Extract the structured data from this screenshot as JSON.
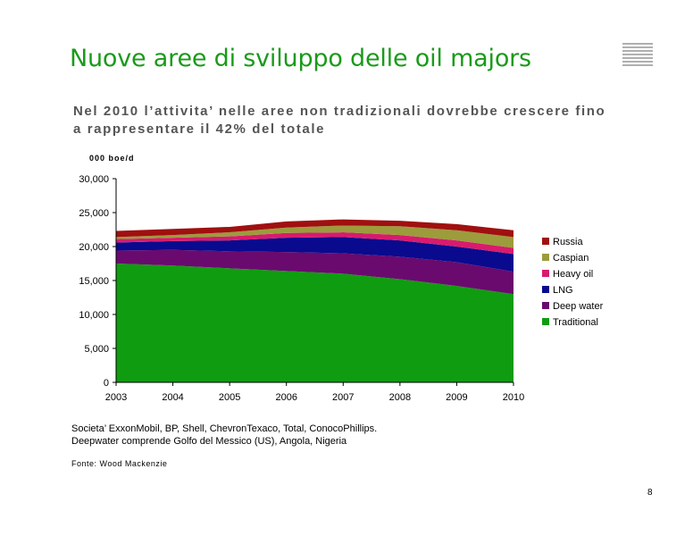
{
  "slide": {
    "title": "Nuove aree di sviluppo delle oil majors",
    "subtitle_line1": "Nel 2010 l’attivita’ nelle aree non tradizionali dovrebbe crescere fino",
    "subtitle_line2": "a rappresentare il 42% del totale",
    "unit": "000 boe/d",
    "note_line1": "Societa’ ExxonMobil, BP, Shell, ChevronTexaco, Total, ConocoPhillips.",
    "note_line2": "Deepwater comprende Golfo del Messico (US), Angola, Nigeria",
    "source": "Fonte: Wood Mackenzie",
    "page_number": "8"
  },
  "chart_data": {
    "type": "area",
    "stacked": true,
    "title": "",
    "xlabel": "",
    "ylabel": "000 boe/d",
    "x": [
      "2003",
      "2004",
      "2005",
      "2006",
      "2007",
      "2008",
      "2009",
      "2010"
    ],
    "ylim": [
      0,
      30000
    ],
    "yticks": [
      0,
      5000,
      10000,
      15000,
      20000,
      25000,
      30000
    ],
    "ytick_labels": [
      "0",
      "5,000",
      "10,000",
      "15,000",
      "20,000",
      "25,000",
      "30,000"
    ],
    "legend_position": "right",
    "grid": false,
    "series": [
      {
        "name": "Traditional",
        "color": "#109c10",
        "values": [
          17500,
          17200,
          16800,
          16400,
          16000,
          15200,
          14200,
          13000
        ]
      },
      {
        "name": "Deep water",
        "color": "#6a0a6e",
        "values": [
          1900,
          2300,
          2500,
          2800,
          3000,
          3300,
          3500,
          3300
        ]
      },
      {
        "name": "LNG",
        "color": "#0a0a8e",
        "values": [
          1200,
          1300,
          1600,
          2100,
          2400,
          2400,
          2300,
          2600
        ]
      },
      {
        "name": "Heavy oil",
        "color": "#d81b6e",
        "values": [
          500,
          500,
          600,
          700,
          700,
          800,
          900,
          900
        ]
      },
      {
        "name": "Caspian",
        "color": "#9c9c3c",
        "values": [
          300,
          400,
          600,
          800,
          1000,
          1300,
          1500,
          1600
        ]
      },
      {
        "name": "Russia",
        "color": "#a01010",
        "values": [
          900,
          900,
          800,
          900,
          900,
          800,
          900,
          1000
        ]
      }
    ]
  }
}
